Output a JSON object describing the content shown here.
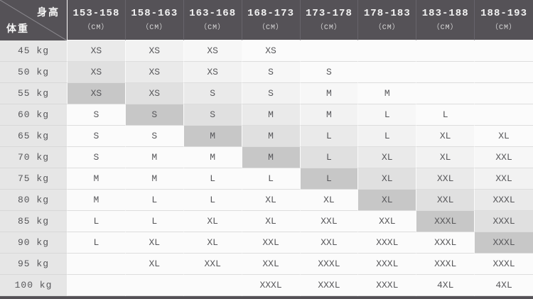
{
  "chart_data": {
    "type": "table",
    "corner": {
      "top_right_label": "身高",
      "bottom_left_label": "体重"
    },
    "column_headers": [
      "153-158",
      "158-163",
      "163-168",
      "168-173",
      "173-178",
      "178-183",
      "183-188",
      "188-193"
    ],
    "column_unit": "（CM）",
    "row_headers": [
      "45 kg",
      "50 kg",
      "55 kg",
      "60 kg",
      "65 kg",
      "70 kg",
      "75 kg",
      "80 kg",
      "85 kg",
      "90 kg",
      "95 kg",
      "100 kg"
    ],
    "cells": [
      [
        "XS",
        "XS",
        "XS",
        "XS",
        "",
        "",
        "",
        ""
      ],
      [
        "XS",
        "XS",
        "XS",
        "S",
        "S",
        "",
        "",
        ""
      ],
      [
        "XS",
        "XS",
        "S",
        "S",
        "M",
        "M",
        "",
        ""
      ],
      [
        "S",
        "S",
        "S",
        "M",
        "M",
        "L",
        "L",
        ""
      ],
      [
        "S",
        "S",
        "M",
        "M",
        "L",
        "L",
        "XL",
        "XL"
      ],
      [
        "S",
        "M",
        "M",
        "M",
        "L",
        "XL",
        "XL",
        "XXL"
      ],
      [
        "M",
        "M",
        "L",
        "L",
        "L",
        "XL",
        "XXL",
        "XXL"
      ],
      [
        "M",
        "L",
        "L",
        "XL",
        "XL",
        "XL",
        "XXL",
        "XXXL"
      ],
      [
        "L",
        "L",
        "XL",
        "XL",
        "XXL",
        "XXL",
        "XXXL",
        "XXXL"
      ],
      [
        "L",
        "XL",
        "XL",
        "XXL",
        "XXL",
        "XXXL",
        "XXXL",
        "XXXL"
      ],
      [
        "",
        "XL",
        "XXL",
        "XXL",
        "XXXL",
        "XXXL",
        "XXXL",
        "XXXL"
      ],
      [
        "",
        "",
        "",
        "XXXL",
        "XXXL",
        "XXXL",
        "4XL",
        "4XL"
      ]
    ],
    "highlight_diagonal": {
      "start_row_index": 2,
      "note": "dark highlighted cells run from 55kg/153-158 down to 90kg/188-193; shading fades to the right of the diagonal"
    }
  },
  "palette": {
    "header_bg": "#555257",
    "header_text": "#f2f2f2",
    "header_unit_text": "#d9d9d9",
    "diagonal_line": "#8a888d",
    "row_header_bg": "#e6e6e6",
    "cell_text": "#57575a",
    "base_cell_bg": "#fbfbfb",
    "diagonal_shades": [
      "#c7c7c7",
      "#e0e0e0",
      "#eaeaea",
      "#f2f2f2",
      "#f7f7f7"
    ]
  }
}
